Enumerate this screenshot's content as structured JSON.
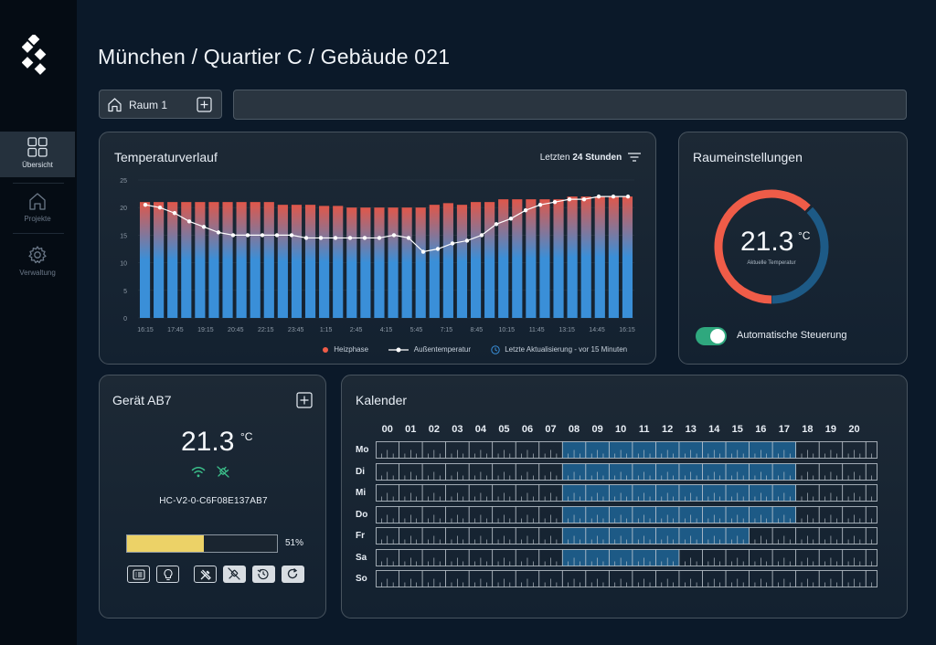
{
  "sidebar": {
    "items": [
      {
        "label": "Übersicht",
        "icon": "grid-icon",
        "active": true
      },
      {
        "label": "Projekte",
        "icon": "home-icon",
        "active": false
      },
      {
        "label": "Verwaltung",
        "icon": "gear-icon",
        "active": false
      }
    ]
  },
  "header": {
    "title": "München / Quartier C / Gebäude 021"
  },
  "room_selector": {
    "label": "Raum 1"
  },
  "temperature_card": {
    "title": "Temperaturverlauf",
    "range_prefix": "Letzten",
    "range_value": "24 Stunden",
    "legend": {
      "heating": "Heizphase",
      "outside": "Außentemperatur",
      "update": "Letzte Aktualisierung - vor 15 Minuten"
    }
  },
  "chart_data": {
    "type": "bar",
    "title": "Temperaturverlauf",
    "ylim": [
      0,
      25
    ],
    "yticks": [
      0,
      5,
      10,
      15,
      20,
      25
    ],
    "x_tick_labels": [
      "16:15",
      "17:45",
      "19:15",
      "20:45",
      "22:15",
      "23:45",
      "1:15",
      "2:45",
      "4:15",
      "5:45",
      "7:15",
      "8:45",
      "10:15",
      "11:45",
      "13:15",
      "14:45",
      "16:15"
    ],
    "series": [
      {
        "name": "Heizphase",
        "type": "bar",
        "values": [
          21,
          21,
          21,
          21,
          21,
          21,
          21,
          21,
          21,
          21,
          20.5,
          20.5,
          20.5,
          20.3,
          20.3,
          20,
          20,
          20,
          20,
          20,
          20,
          20.5,
          20.8,
          20.5,
          21,
          21,
          21.5,
          21.5,
          21.5,
          21.5,
          21.5,
          22,
          22,
          22,
          22,
          22
        ]
      },
      {
        "name": "Außentemperatur",
        "type": "line",
        "values": [
          20.5,
          20,
          19,
          17.5,
          16.5,
          15.5,
          15,
          15,
          15,
          15,
          15,
          14.5,
          14.5,
          14.5,
          14.5,
          14.5,
          14.5,
          15,
          14.5,
          12,
          12.5,
          13.5,
          14,
          15,
          17,
          18,
          19.5,
          20.5,
          21,
          21.5,
          21.5,
          22,
          22,
          22
        ]
      }
    ]
  },
  "room_settings": {
    "title": "Raumeinstellungen",
    "temperature": "21.3",
    "unit": "°C",
    "caption": "Aktuelle Temperatur",
    "gauge_fraction": 0.62,
    "auto_label": "Automatische Steuerung",
    "auto_on": true,
    "colors": {
      "warm": "#ef5c48",
      "cool": "#1d5a86",
      "toggle": "#2fa87e"
    }
  },
  "device": {
    "title": "Gerät AB7",
    "temperature": "21.3",
    "unit": "°C",
    "id": "HC-V2-0-C6F08E137AB7",
    "battery_percent": 51,
    "battery_label": "51%",
    "status_icons": [
      "wifi-icon",
      "plug-icon"
    ]
  },
  "calendar": {
    "title": "Kalender",
    "hours": [
      "00",
      "01",
      "02",
      "03",
      "04",
      "05",
      "06",
      "07",
      "08",
      "09",
      "10",
      "11",
      "12",
      "13",
      "14",
      "15",
      "16",
      "17",
      "18",
      "19",
      "20"
    ],
    "days": [
      {
        "label": "Mo",
        "on": [
          8,
          18
        ]
      },
      {
        "label": "Di",
        "on": [
          8,
          18
        ]
      },
      {
        "label": "Mi",
        "on": [
          8,
          18
        ]
      },
      {
        "label": "Do",
        "on": [
          8,
          18
        ]
      },
      {
        "label": "Fr",
        "on": [
          8,
          16
        ]
      },
      {
        "label": "Sa",
        "on": [
          8,
          13
        ]
      },
      {
        "label": "So",
        "on": null
      }
    ],
    "active_color": "#1d5a86"
  }
}
